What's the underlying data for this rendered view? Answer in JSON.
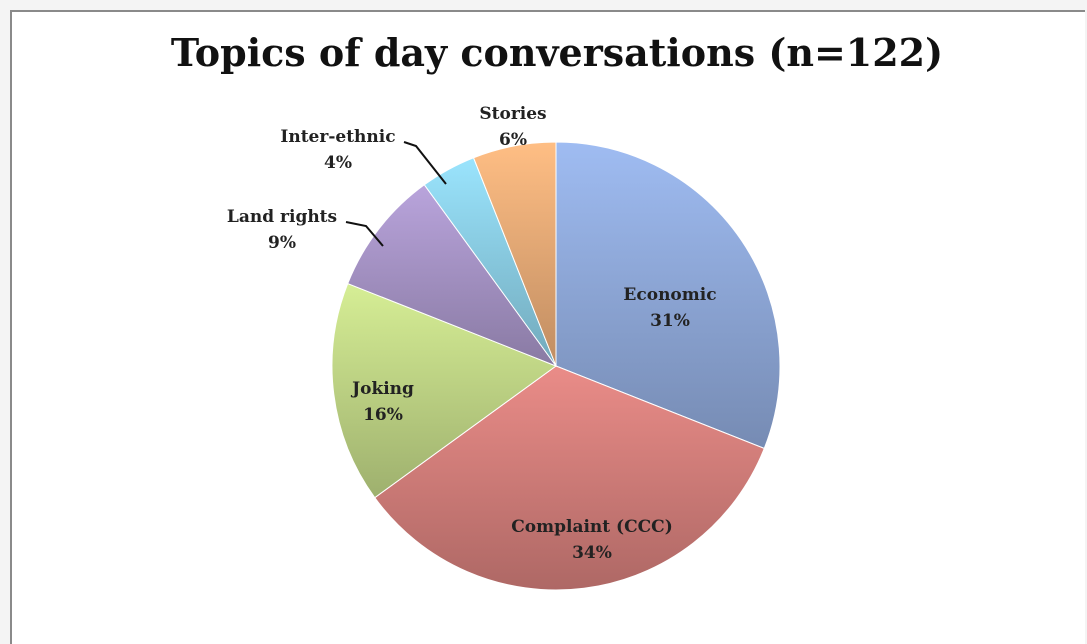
{
  "chart_data": {
    "type": "pie",
    "title": "Topics of day conversations (n=122)",
    "slices": [
      {
        "label": "Economic",
        "value": 31,
        "value_label": "31%",
        "color": "#93aee0"
      },
      {
        "label": "Complaint (CCC)",
        "value": 34,
        "value_label": "34%",
        "color": "#d9827e"
      },
      {
        "label": "Joking",
        "value": 16,
        "value_label": "16%",
        "color": "#c6dc8a"
      },
      {
        "label": "Land rights",
        "value": 9,
        "value_label": "9%",
        "color": "#ab98cc"
      },
      {
        "label": "Inter-ethnic",
        "value": 4,
        "value_label": "4%",
        "color": "#8fd3ea"
      },
      {
        "label": "Stories",
        "value": 6,
        "value_label": "6%",
        "color": "#f0b07a"
      }
    ],
    "legend": "none"
  }
}
